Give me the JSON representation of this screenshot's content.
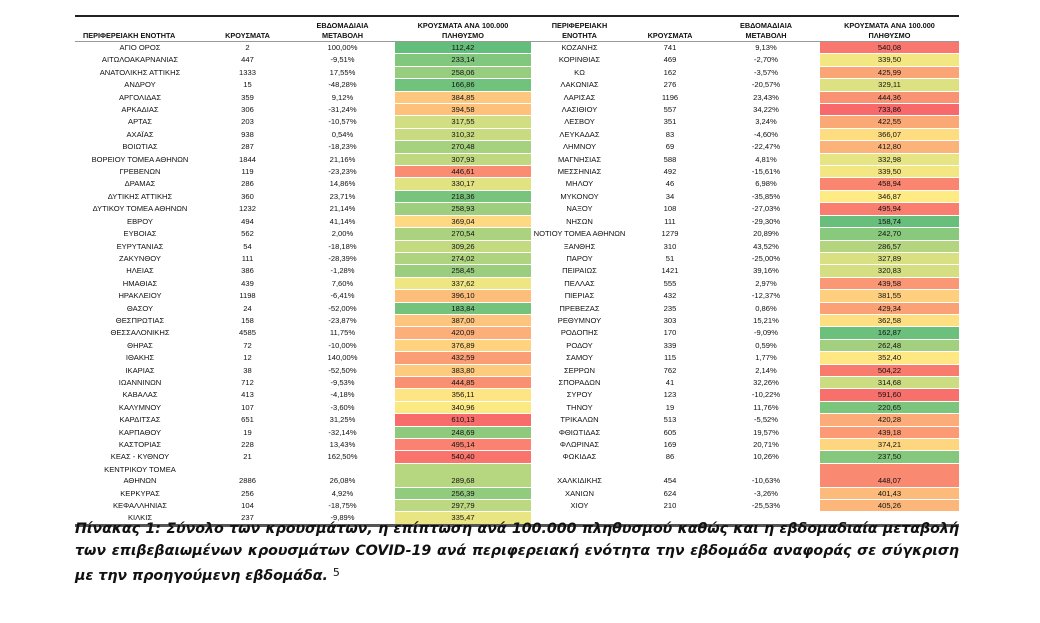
{
  "table": {
    "headers": {
      "left": [
        "ΠΕΡΙΦΕΡΕΙΑΚΗ ΕΝΟΤΗΤΑ",
        "ΚΡΟΥΣΜΑΤΑ",
        "ΕΒΔΟΜΑΔΙΑΙΑ\nΜΕΤΑΒΟΛΗ",
        "ΚΡΟΥΣΜΑΤΑ ΑΝΑ 100.000\nΠΛΗΘΥΣΜΟ"
      ],
      "right": [
        "ΠΕΡΙΦΕΡΕΙΑΚΗ\nΕΝΟΤΗΤΑ",
        "ΚΡΟΥΣΜΑΤΑ",
        "ΕΒΔΟΜΑΔΙΑΙΑ\nΜΕΤΑΒΟΛΗ",
        "ΚΡΟΥΣΜΑΤΑ ΑΝΑ 100.000\nΠΛΗΘΥΣΜΟ"
      ]
    },
    "left_rows": [
      [
        "ΑΓΙΟ ΟΡΟΣ",
        "2",
        "100,00%",
        "112,42"
      ],
      [
        "ΑΙΤΩΛΟΑΚΑΡΝΑΝΙΑΣ",
        "447",
        "-9,51%",
        "233,14"
      ],
      [
        "ΑΝΑΤΟΛΙΚΗΣ ΑΤΤΙΚΗΣ",
        "1333",
        "17,55%",
        "258,06"
      ],
      [
        "ΑΝΔΡΟΥ",
        "15",
        "-48,28%",
        "166,86"
      ],
      [
        "ΑΡΓΟΛΙΔΑΣ",
        "359",
        "9,12%",
        "384,85"
      ],
      [
        "ΑΡΚΑΔΙΑΣ",
        "306",
        "-31,24%",
        "394,58"
      ],
      [
        "ΑΡΤΑΣ",
        "203",
        "-10,57%",
        "317,55"
      ],
      [
        "ΑΧΑΪΑΣ",
        "938",
        "0,54%",
        "310,32"
      ],
      [
        "ΒΟΙΩΤΙΑΣ",
        "287",
        "-18,23%",
        "270,48"
      ],
      [
        "ΒΟΡΕΙΟΥ ΤΟΜΕΑ ΑΘΗΝΩΝ",
        "1844",
        "21,16%",
        "307,93"
      ],
      [
        "ΓΡΕΒΕΝΩΝ",
        "119",
        "-23,23%",
        "446,61"
      ],
      [
        "ΔΡΑΜΑΣ",
        "286",
        "14,86%",
        "330,17"
      ],
      [
        "ΔΥΤΙΚΗΣ ΑΤΤΙΚΗΣ",
        "360",
        "23,71%",
        "218,36"
      ],
      [
        "ΔΥΤΙΚΟΥ ΤΟΜΕΑ ΑΘΗΝΩΝ",
        "1232",
        "21,14%",
        "258,93"
      ],
      [
        "ΕΒΡΟΥ",
        "494",
        "41,14%",
        "369,04"
      ],
      [
        "ΕΥΒΟΙΑΣ",
        "562",
        "2,00%",
        "270,54"
      ],
      [
        "ΕΥΡΥΤΑΝΙΑΣ",
        "54",
        "-18,18%",
        "309,26"
      ],
      [
        "ΖΑΚΥΝΘΟΥ",
        "111",
        "-28,39%",
        "274,02"
      ],
      [
        "ΗΛΕΙΑΣ",
        "386",
        "-1,28%",
        "258,45"
      ],
      [
        "ΗΜΑΘΙΑΣ",
        "439",
        "7,60%",
        "337,62"
      ],
      [
        "ΗΡΑΚΛΕΙΟΥ",
        "1198",
        "-6,41%",
        "396,10"
      ],
      [
        "ΘΑΣΟΥ",
        "24",
        "-52,00%",
        "183,84"
      ],
      [
        "ΘΕΣΠΡΩΤΙΑΣ",
        "158",
        "-23,87%",
        "387,00"
      ],
      [
        "ΘΕΣΣΑΛΟΝΙΚΗΣ",
        "4585",
        "11,75%",
        "420,09"
      ],
      [
        "ΘΗΡΑΣ",
        "72",
        "-10,00%",
        "376,89"
      ],
      [
        "ΙΘΑΚΗΣ",
        "12",
        "140,00%",
        "432,59"
      ],
      [
        "ΙΚΑΡΙΑΣ",
        "38",
        "-52,50%",
        "383,80"
      ],
      [
        "ΙΩΑΝΝΙΝΩΝ",
        "712",
        "-9,53%",
        "444,85"
      ],
      [
        "ΚΑΒΑΛΑΣ",
        "413",
        "-4,18%",
        "356,11"
      ],
      [
        "ΚΑΛΥΜΝΟΥ",
        "107",
        "-3,60%",
        "340,96"
      ],
      [
        "ΚΑΡΔΙΤΣΑΣ",
        "651",
        "31,25%",
        "610,13"
      ],
      [
        "ΚΑΡΠΑΘΟΥ",
        "19",
        "-32,14%",
        "248,69"
      ],
      [
        "ΚΑΣΤΟΡΙΑΣ",
        "228",
        "13,43%",
        "495,14"
      ],
      [
        "ΚΕΑΣ - ΚΥΘΝΟΥ",
        "21",
        "162,50%",
        "540,40"
      ],
      [
        "ΚΕΝΤΡΙΚΟΥ ΤΟΜΕΑ\nΑΘΗΝΩΝ",
        "2886",
        "26,08%",
        "289,68"
      ],
      [
        "ΚΕΡΚΥΡΑΣ",
        "256",
        "4,92%",
        "256,39"
      ],
      [
        "ΚΕΦΑΛΛΗΝΙΑΣ",
        "104",
        "-18,75%",
        "297,79"
      ],
      [
        "ΚΙΛΚΙΣ",
        "237",
        "-9,89%",
        "335,47"
      ]
    ],
    "right_rows": [
      [
        "ΚΟΖΑΝΗΣ",
        "741",
        "9,13%",
        "540,08"
      ],
      [
        "ΚΟΡΙΝΘΙΑΣ",
        "469",
        "-2,70%",
        "339,50"
      ],
      [
        "ΚΩ",
        "162",
        "-3,57%",
        "425,99"
      ],
      [
        "ΛΑΚΩΝΙΑΣ",
        "276",
        "-20,57%",
        "329,11"
      ],
      [
        "ΛΑΡΙΣΑΣ",
        "1196",
        "23,43%",
        "444,36"
      ],
      [
        "ΛΑΣΙΘΙΟΥ",
        "557",
        "34,22%",
        "733,86"
      ],
      [
        "ΛΕΣΒΟΥ",
        "351",
        "3,24%",
        "422,55"
      ],
      [
        "ΛΕΥΚΑΔΑΣ",
        "83",
        "-4,60%",
        "366,07"
      ],
      [
        "ΛΗΜΝΟΥ",
        "69",
        "-22,47%",
        "412,80"
      ],
      [
        "ΜΑΓΝΗΣΙΑΣ",
        "588",
        "4,81%",
        "332,98"
      ],
      [
        "ΜΕΣΣΗΝΙΑΣ",
        "492",
        "-15,61%",
        "339,50"
      ],
      [
        "ΜΗΛΟΥ",
        "46",
        "6,98%",
        "458,94"
      ],
      [
        "ΜΥΚΟΝΟΥ",
        "34",
        "-35,85%",
        "346,87"
      ],
      [
        "ΝΑΞΟΥ",
        "108",
        "-27,03%",
        "495,94"
      ],
      [
        "ΝΗΣΩΝ",
        "111",
        "-29,30%",
        "158,74"
      ],
      [
        "ΝΟΤΙΟΥ ΤΟΜΕΑ ΑΘΗΝΩΝ",
        "1279",
        "20,89%",
        "242,70"
      ],
      [
        "ΞΑΝΘΗΣ",
        "310",
        "43,52%",
        "286,57"
      ],
      [
        "ΠΑΡΟΥ",
        "51",
        "-25,00%",
        "327,89"
      ],
      [
        "ΠΕΙΡΑΙΩΣ",
        "1421",
        "39,16%",
        "320,83"
      ],
      [
        "ΠΕΛΛΑΣ",
        "555",
        "2,97%",
        "439,58"
      ],
      [
        "ΠΙΕΡΙΑΣ",
        "432",
        "-12,37%",
        "381,55"
      ],
      [
        "ΠΡΕΒΕΖΑΣ",
        "235",
        "0,86%",
        "429,34"
      ],
      [
        "ΡΕΘΥΜΝΟΥ",
        "303",
        "15,21%",
        "362,58"
      ],
      [
        "ΡΟΔΟΠΗΣ",
        "170",
        "-9,09%",
        "162,87"
      ],
      [
        "ΡΟΔΟΥ",
        "339",
        "0,59%",
        "262,48"
      ],
      [
        "ΣΑΜΟΥ",
        "115",
        "1,77%",
        "352,40"
      ],
      [
        "ΣΕΡΡΩΝ",
        "762",
        "2,14%",
        "504,22"
      ],
      [
        "ΣΠΟΡΑΔΩΝ",
        "41",
        "32,26%",
        "314,68"
      ],
      [
        "ΣΥΡΟΥ",
        "123",
        "-10,22%",
        "591,60"
      ],
      [
        "ΤΗΝΟΥ",
        "19",
        "11,76%",
        "220,65"
      ],
      [
        "ΤΡΙΚΑΛΩΝ",
        "513",
        "-5,52%",
        "420,28"
      ],
      [
        "ΦΘΙΩΤΙΔΑΣ",
        "605",
        "19,57%",
        "439,18"
      ],
      [
        "ΦΛΩΡΙΝΑΣ",
        "169",
        "20,71%",
        "374,21"
      ],
      [
        "ΦΩΚΙΔΑΣ",
        "86",
        "10,26%",
        "237,50"
      ],
      [
        "ΧΑΛΚΙΔΙΚΗΣ",
        "454",
        "-10,63%",
        "448,07"
      ],
      [
        "ΧΑΝΙΩΝ",
        "624",
        "-3,26%",
        "401,43"
      ],
      [
        "ΧΙΟΥ",
        "210",
        "-25,53%",
        "405,26"
      ]
    ],
    "color_scale": {
      "low": "#63BE7B",
      "mid": "#FFEB84",
      "high": "#F8696B"
    }
  },
  "caption": {
    "text": "Πίνακας 1: Σύνολο των κρουσμάτων, η επίπτωση ανά 100.000 πληθυσμού καθώς και η εβδομαδιαία μεταβολή των επιβεβαιωμένων κρουσμάτων COVID-19 ανά περιφερειακή ενότητα την εβδομάδα αναφοράς σε σύγκριση με την προηγούμενη εβδομάδα.",
    "footnote": "5"
  }
}
